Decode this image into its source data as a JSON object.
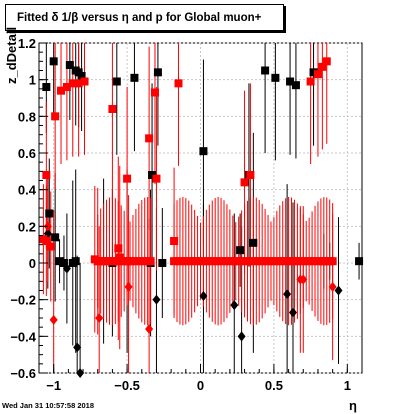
{
  "timestamp": "Wed Jan 31 10:57:58 2018",
  "colors": {
    "muon_black": "#000000",
    "muon_red": "#ff0000",
    "grid": "#c8c8c8"
  },
  "chart_data": {
    "type": "scatter",
    "title": "Fitted δ 1/β versus η and p for Global muon+",
    "xlabel": "η",
    "ylabel": "z_dDetail",
    "xlim": [
      -1.1,
      1.1
    ],
    "ylim": [
      -0.6,
      1.2
    ],
    "grid": true,
    "x_ticks": [
      -1,
      -0.5,
      0,
      0.5,
      1
    ],
    "x_tick_labels": [
      "−1",
      "−0.5",
      "0",
      "0.5",
      "1"
    ],
    "y_ticks": [
      -0.6,
      -0.4,
      -0.2,
      0,
      0.2,
      0.4,
      0.6,
      0.8,
      1,
      1.2
    ],
    "y_tick_labels": [
      "−0.6",
      "−0.4",
      "−0.2",
      "0",
      "0.2",
      "0.4",
      "0.6",
      "0.8",
      "1",
      "1.2"
    ],
    "series": [
      {
        "color": "#000000",
        "marker": "square",
        "points": [
          {
            "x": -1.05,
            "y": 0.96,
            "err": 0.25
          },
          {
            "x": -1.0,
            "y": 1.1,
            "err": 0.3
          },
          {
            "x": -0.89,
            "y": 1.08,
            "err": 0.3
          },
          {
            "x": -0.85,
            "y": 1.05,
            "err": 0.3
          },
          {
            "x": -0.83,
            "y": 1.04,
            "err": 0.3
          },
          {
            "x": -0.81,
            "y": 1.02,
            "err": 0.3
          },
          {
            "x": -0.57,
            "y": 0.99,
            "err": 0.4
          },
          {
            "x": -0.45,
            "y": 1.01,
            "err": 0.4
          },
          {
            "x": -0.29,
            "y": 1.04,
            "err": 0.4
          },
          {
            "x": -0.33,
            "y": 0.48,
            "err": 0.5
          },
          {
            "x": 0.02,
            "y": 0.61,
            "err": 0.5
          },
          {
            "x": 0.33,
            "y": 0.48,
            "err": 0.5
          },
          {
            "x": 0.44,
            "y": 1.05,
            "err": 0.45
          },
          {
            "x": 0.51,
            "y": 1.01,
            "err": 0.45
          },
          {
            "x": 0.61,
            "y": 0.99,
            "err": 0.4
          },
          {
            "x": 0.65,
            "y": 0.97,
            "err": 0.4
          },
          {
            "x": 0.77,
            "y": 1.04,
            "err": 0.4
          },
          {
            "x": -1.03,
            "y": 0.27,
            "err": 0.3
          },
          {
            "x": -0.99,
            "y": 0.14,
            "err": 0.35
          },
          {
            "x": -0.96,
            "y": 0.01,
            "err": 0.12
          },
          {
            "x": -0.93,
            "y": 0.0,
            "err": 0.15
          },
          {
            "x": -0.87,
            "y": 0.0,
            "err": 0.45
          },
          {
            "x": -0.85,
            "y": 0.01,
            "err": 0.5
          },
          {
            "x": -0.66,
            "y": 0.01,
            "err": 0.45
          },
          {
            "x": -0.6,
            "y": 0.0,
            "err": 0.4
          },
          {
            "x": -0.5,
            "y": 0.01,
            "err": 0.5
          },
          {
            "x": -0.34,
            "y": 0.0,
            "err": 0.4
          },
          {
            "x": -0.26,
            "y": 0.0,
            "err": 0.3
          },
          {
            "x": 0.27,
            "y": 0.07,
            "err": 0.2
          },
          {
            "x": 0.36,
            "y": 0.11,
            "err": 0.6
          },
          {
            "x": 0.84,
            "y": 0.01,
            "err": 0.15
          },
          {
            "x": 0.88,
            "y": 0.01,
            "err": 0.1
          },
          {
            "x": 1.08,
            "y": 0.01,
            "err": 0.1
          }
        ]
      },
      {
        "color": "#000000",
        "marker": "diamond",
        "points": [
          {
            "x": -1.04,
            "y": 0.16,
            "err": 0.3
          },
          {
            "x": -0.91,
            "y": -0.03,
            "err": 0.3
          },
          {
            "x": -0.84,
            "y": -0.46,
            "err": 0.5
          },
          {
            "x": -0.82,
            "y": -0.6,
            "err": 0.6
          },
          {
            "x": -0.3,
            "y": -0.2,
            "err": 0.5
          },
          {
            "x": 0.02,
            "y": -0.18,
            "err": 0.5
          },
          {
            "x": 0.23,
            "y": -0.23,
            "err": 0.5
          },
          {
            "x": 0.28,
            "y": -0.4,
            "err": 0.6
          },
          {
            "x": 0.59,
            "y": -0.17,
            "err": 0.6
          },
          {
            "x": 0.63,
            "y": -0.27,
            "err": 0.6
          },
          {
            "x": 0.94,
            "y": -0.15,
            "err": 0.4
          }
        ]
      },
      {
        "color": "#ff0000",
        "marker": "square",
        "points": [
          {
            "x": -1.05,
            "y": 0.48,
            "err": 0.4
          },
          {
            "x": -0.99,
            "y": 0.8,
            "err": 0.4
          },
          {
            "x": -0.95,
            "y": 0.94,
            "err": 0.4
          },
          {
            "x": -0.91,
            "y": 0.96,
            "err": 0.4
          },
          {
            "x": -0.87,
            "y": 0.98,
            "err": 0.4
          },
          {
            "x": -0.83,
            "y": 0.98,
            "err": 0.4
          },
          {
            "x": -0.79,
            "y": 0.99,
            "err": 0.4
          },
          {
            "x": -0.6,
            "y": 0.84,
            "err": 0.5
          },
          {
            "x": -0.5,
            "y": 0.46,
            "err": 0.5
          },
          {
            "x": -0.35,
            "y": 0.68,
            "err": 0.5
          },
          {
            "x": -0.31,
            "y": 0.93,
            "err": 0.5
          },
          {
            "x": -0.3,
            "y": 0.46,
            "err": 0.5
          },
          {
            "x": -0.15,
            "y": 0.98,
            "err": 0.45
          },
          {
            "x": 0.3,
            "y": 0.44,
            "err": 0.5
          },
          {
            "x": 0.34,
            "y": 0.48,
            "err": 0.5
          },
          {
            "x": 0.75,
            "y": 0.99,
            "err": 0.45
          },
          {
            "x": 0.8,
            "y": 1.03,
            "err": 0.45
          },
          {
            "x": 0.83,
            "y": 1.07,
            "err": 0.45
          },
          {
            "x": 0.86,
            "y": 1.1,
            "err": 0.45
          },
          {
            "x": -1.07,
            "y": 0.13,
            "err": 0.3
          },
          {
            "x": -1.05,
            "y": 0.12,
            "err": 0.3
          },
          {
            "x": -1.02,
            "y": 0.09,
            "err": 0.3
          },
          {
            "x": -0.72,
            "y": 0.02,
            "err": 0.4
          },
          {
            "x": -0.7,
            "y": 0.01,
            "err": 0.4
          },
          {
            "x": -0.56,
            "y": 0.08,
            "err": 0.5
          },
          {
            "x": -0.55,
            "y": 0.03,
            "err": 0.5
          },
          {
            "x": -0.18,
            "y": 0.12,
            "err": 0.4
          }
        ]
      },
      {
        "color": "#ff0000",
        "marker": "diamond",
        "points": [
          {
            "x": -1.04,
            "y": 0.2,
            "err": 0.3
          },
          {
            "x": -1.0,
            "y": -0.31,
            "err": 0.6
          },
          {
            "x": -0.69,
            "y": -0.3,
            "err": 0.5
          },
          {
            "x": -0.49,
            "y": -0.13,
            "err": 0.5
          },
          {
            "x": -0.35,
            "y": -0.36,
            "err": 0.6
          },
          {
            "x": 0.68,
            "y": -0.09,
            "err": 0.4
          },
          {
            "x": 0.7,
            "y": -0.09,
            "err": 0.4
          },
          {
            "x": 0.9,
            "y": -0.13,
            "err": 0.4
          }
        ]
      },
      {
        "color": "#ff0000",
        "marker": "square",
        "band": "zero",
        "points_x_from": -0.7,
        "points_x_to": 0.9,
        "points_x_step": 0.02,
        "y": 0.01,
        "err": 0.35
      }
    ]
  }
}
